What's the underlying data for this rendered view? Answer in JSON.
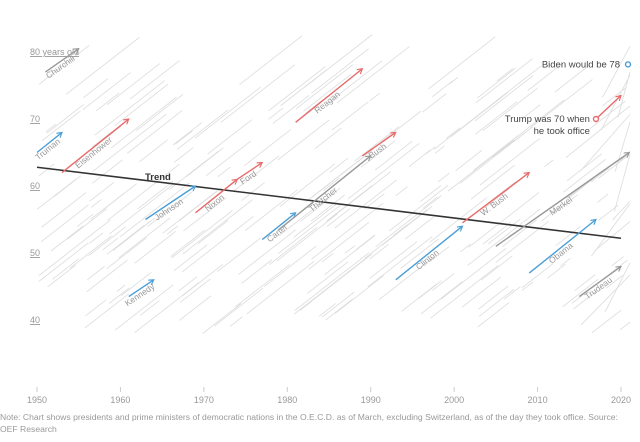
{
  "chart_data": {
    "type": "line",
    "title": "",
    "xlabel": "",
    "ylabel": "",
    "xlim": [
      1950,
      2020
    ],
    "ylim": [
      30,
      85
    ],
    "x_ticks": [
      1950,
      1960,
      1970,
      1980,
      1990,
      2000,
      2010,
      2020
    ],
    "x_tick_labels": [
      "1950",
      "1960",
      "1970",
      "1980",
      "1990",
      "2000",
      "2010",
      "2020"
    ],
    "y_ticks": [
      80,
      70,
      60,
      50,
      40
    ],
    "y_tick_labels": [
      "80",
      "70",
      "60",
      "50",
      "40"
    ],
    "y_top_suffix": " years old",
    "trend": {
      "label": "Trend",
      "start": [
        1950,
        62.8
      ],
      "end": [
        2020,
        52.2
      ]
    },
    "leaders": [
      {
        "name": "Churchill",
        "start": [
          1951,
          77
        ],
        "end": [
          1955,
          80.5
        ],
        "party": "gray"
      },
      {
        "name": "Truman",
        "start": [
          1950,
          65
        ],
        "end": [
          1953,
          68
        ],
        "party": "blue"
      },
      {
        "name": "Eisenhower",
        "start": [
          1953,
          62
        ],
        "end": [
          1961,
          70
        ],
        "party": "red"
      },
      {
        "name": "Johnson",
        "start": [
          1963,
          55
        ],
        "end": [
          1969,
          60
        ],
        "party": "blue"
      },
      {
        "name": "Kennedy",
        "start": [
          1961,
          43.5
        ],
        "end": [
          1964,
          46
        ],
        "party": "blue"
      },
      {
        "name": "Nixon",
        "start": [
          1969,
          56
        ],
        "end": [
          1974,
          61
        ],
        "party": "red"
      },
      {
        "name": "Ford",
        "start": [
          1974,
          61
        ],
        "end": [
          1977,
          63.5
        ],
        "party": "red"
      },
      {
        "name": "Carter",
        "start": [
          1977,
          52
        ],
        "end": [
          1981,
          56
        ],
        "party": "blue"
      },
      {
        "name": "Reagan",
        "start": [
          1981,
          69.5
        ],
        "end": [
          1989,
          77.5
        ],
        "party": "red"
      },
      {
        "name": "Thatcher",
        "start": [
          1979,
          53.5
        ],
        "end": [
          1990,
          64.5
        ],
        "party": "gray"
      },
      {
        "name": "Bush",
        "start": [
          1989,
          64.5
        ],
        "end": [
          1993,
          68
        ],
        "party": "red"
      },
      {
        "name": "Clinton",
        "start": [
          1993,
          46
        ],
        "end": [
          2001,
          54
        ],
        "party": "blue"
      },
      {
        "name": "W. Bush",
        "start": [
          2001,
          54.5
        ],
        "end": [
          2009,
          62
        ],
        "party": "red"
      },
      {
        "name": "Merkel",
        "start": [
          2005,
          51
        ],
        "end": [
          2021,
          65
        ],
        "party": "gray"
      },
      {
        "name": "Obama",
        "start": [
          2009,
          47
        ],
        "end": [
          2017,
          55
        ],
        "party": "blue"
      },
      {
        "name": "Trudeau",
        "start": [
          2015,
          43.5
        ],
        "end": [
          2020,
          48
        ],
        "party": "gray"
      },
      {
        "name": "Trump",
        "start": [
          2017,
          70
        ],
        "end": [
          2020,
          73.5
        ],
        "party": "red"
      }
    ],
    "annotations": [
      {
        "text": "Biden would be 78",
        "x": 2021,
        "y": 78,
        "color": "#4a9fd8"
      },
      {
        "text_lines": [
          "Trump was 70 when",
          "he took office"
        ],
        "x": 2017,
        "y": 70,
        "color": "#e86a6a"
      }
    ],
    "colors": {
      "red": "#e86a6a",
      "blue": "#4a9fd8",
      "gray": "#999999",
      "trend": "#333333",
      "background_lines": "#dddddd"
    }
  },
  "note": "Note: Chart shows presidents and prime ministers of democratic nations in the O.E.C.D. as of March, excluding Switzerland, as of the day they took office. Source: OEF Research"
}
